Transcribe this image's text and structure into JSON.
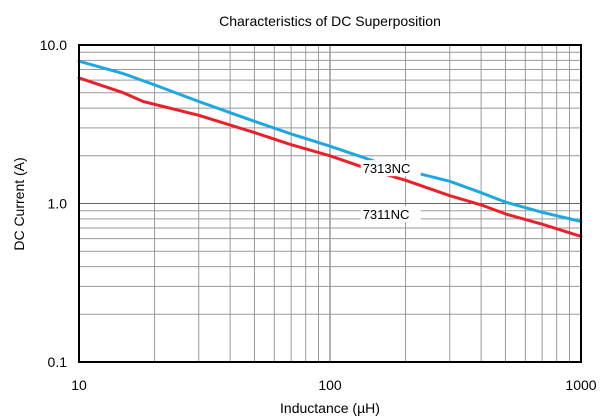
{
  "chart_data": {
    "type": "line",
    "title": "Characteristics of DC Superposition",
    "xlabel": "Inductance (µH)",
    "ylabel": "DC Current (A)",
    "xscale": "log",
    "yscale": "log",
    "xlim": [
      10,
      1000
    ],
    "ylim": [
      0.1,
      10
    ],
    "xticks": [
      10,
      100,
      1000
    ],
    "xtick_labels": [
      "10",
      "100",
      "1000"
    ],
    "yticks": [
      0.1,
      1,
      10
    ],
    "ytick_labels": [
      "0.1",
      "1.0",
      "10.0"
    ],
    "grid": true,
    "series": [
      {
        "name": "7313NC",
        "color": "#1ea7e1",
        "x": [
          10,
          15,
          20,
          30,
          50,
          70,
          100,
          150,
          200,
          300,
          400,
          500,
          700,
          1000
        ],
        "y": [
          7.9,
          6.6,
          5.6,
          4.4,
          3.3,
          2.75,
          2.3,
          1.85,
          1.62,
          1.38,
          1.17,
          1.02,
          0.88,
          0.77
        ]
      },
      {
        "name": "7311NC",
        "color": "#e8212a",
        "x": [
          10,
          15,
          18,
          30,
          50,
          70,
          100,
          150,
          200,
          300,
          400,
          500,
          700,
          1000
        ],
        "y": [
          6.2,
          5.0,
          4.4,
          3.6,
          2.8,
          2.35,
          2.0,
          1.6,
          1.4,
          1.12,
          0.98,
          0.86,
          0.74,
          0.62
        ]
      }
    ]
  }
}
